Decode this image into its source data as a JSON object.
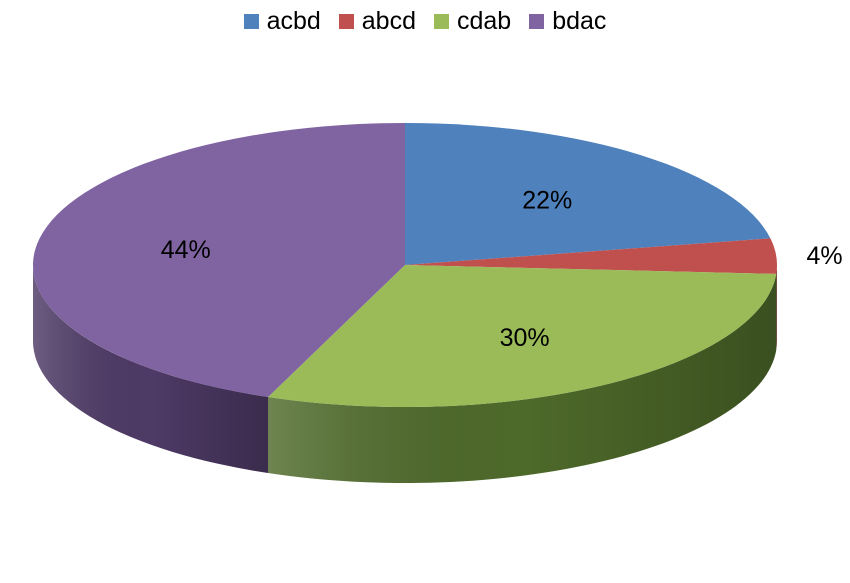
{
  "chart_data": {
    "type": "pie",
    "style": "3d",
    "title": "",
    "legend_position": "top",
    "slices": [
      {
        "name": "acbd",
        "value": 22,
        "label": "22%",
        "color": "#4F81BD",
        "side_color": "#2E4D74"
      },
      {
        "name": "abcd",
        "value": 4,
        "label": "4%",
        "color": "#C0504D",
        "side_color": "#7A2E2C"
      },
      {
        "name": "cdab",
        "value": 30,
        "label": "30%",
        "color": "#9BBB59",
        "side_color": "#4E6A2A"
      },
      {
        "name": "bdac",
        "value": 44,
        "label": "44%",
        "color": "#8064A2",
        "side_color": "#4E3A66"
      }
    ]
  }
}
